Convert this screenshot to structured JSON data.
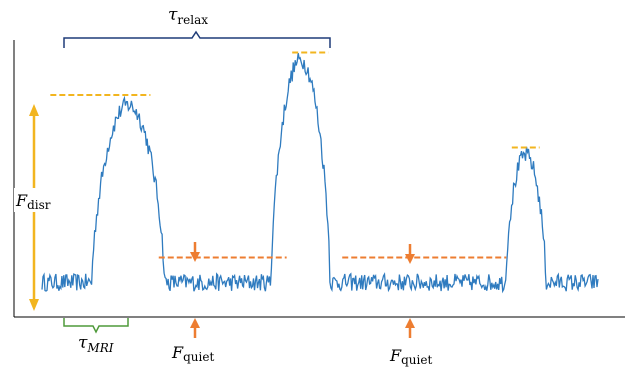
{
  "chart_data": {
    "type": "line",
    "title": "",
    "xlabel": "",
    "ylabel": "",
    "grid": false,
    "ylim": [
      0,
      1
    ],
    "xlim": [
      0,
      100
    ],
    "series": [
      {
        "color": "#2f7bbf",
        "peaks": [
          {
            "center": 15.5,
            "half_width": 6.5,
            "height": 0.78
          },
          {
            "center": 46.5,
            "half_width": 5.3,
            "height": 0.96
          },
          {
            "center": 87.0,
            "half_width": 3.6,
            "height": 0.58
          }
        ],
        "baseline": 0.07,
        "noise": 0.035
      }
    ],
    "reference_lines": [
      {
        "kind": "F_disr",
        "x_start": 1.5,
        "x_end": 19.5,
        "y": 0.82,
        "color": "#f2b51f"
      },
      {
        "kind": "peak2",
        "x_start": 45.0,
        "x_end": 51.5,
        "y": 0.99,
        "color": "#f2b51f"
      },
      {
        "kind": "peak3",
        "x_start": 84.5,
        "x_end": 89.5,
        "y": 0.61,
        "color": "#f2b51f"
      },
      {
        "kind": "F_quiet",
        "x_start": 21.0,
        "x_end": 44.0,
        "y": 0.17,
        "color": "#ed7d31"
      },
      {
        "kind": "F_quiet",
        "x_start": 54.0,
        "x_end": 83.5,
        "y": 0.17,
        "color": "#ed7d31"
      }
    ]
  },
  "annotations": {
    "tau_relax": {
      "symbol": "τ",
      "subscript": "relax"
    },
    "tau_mri": {
      "symbol": "τ",
      "subscript": "MRI"
    },
    "f_disr": {
      "symbol": "F",
      "subscript": "disr"
    },
    "f_quiet_left": {
      "symbol": "F",
      "subscript": "quiet"
    },
    "f_quiet_right": {
      "symbol": "F",
      "subscript": "quiet"
    }
  },
  "colors": {
    "signal": "#2f7bbf",
    "peak_level": "#f2b51f",
    "quiet_level": "#ed7d31",
    "relax_brace": "#1f3c78",
    "mri_brace": "#4f9a3a",
    "axis": "#000000"
  }
}
